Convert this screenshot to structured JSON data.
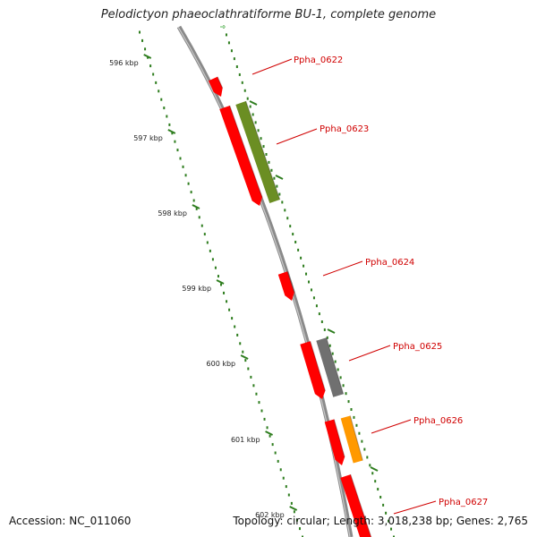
{
  "title": "Pelodictyon phaeoclathratiforme BU-1, complete genome",
  "footer": {
    "accession": "Accession: NC_011060",
    "summary": "Topology: circular; Length: 3,018,238 bp; Genes: 2,765"
  },
  "colors": {
    "backbone": "#8a8a8a",
    "tick": "#2e7d1e",
    "label": "#d00000",
    "cds": "#ff0000",
    "green_feature": "#6b8e23",
    "gray_feature": "#707070",
    "orange_feature": "#ff9900"
  },
  "ticks": [
    {
      "label": "596 kbp"
    },
    {
      "label": "597 kbp"
    },
    {
      "label": "598 kbp"
    },
    {
      "label": "599 kbp"
    },
    {
      "label": "600 kbp"
    },
    {
      "label": "601 kbp"
    },
    {
      "label": "602 kbp"
    }
  ],
  "genes": [
    {
      "name": "Ppha_0622"
    },
    {
      "name": "Ppha_0623"
    },
    {
      "name": "Ppha_0624"
    },
    {
      "name": "Ppha_0625"
    },
    {
      "name": "Ppha_0626"
    },
    {
      "name": "Ppha_0627"
    }
  ]
}
